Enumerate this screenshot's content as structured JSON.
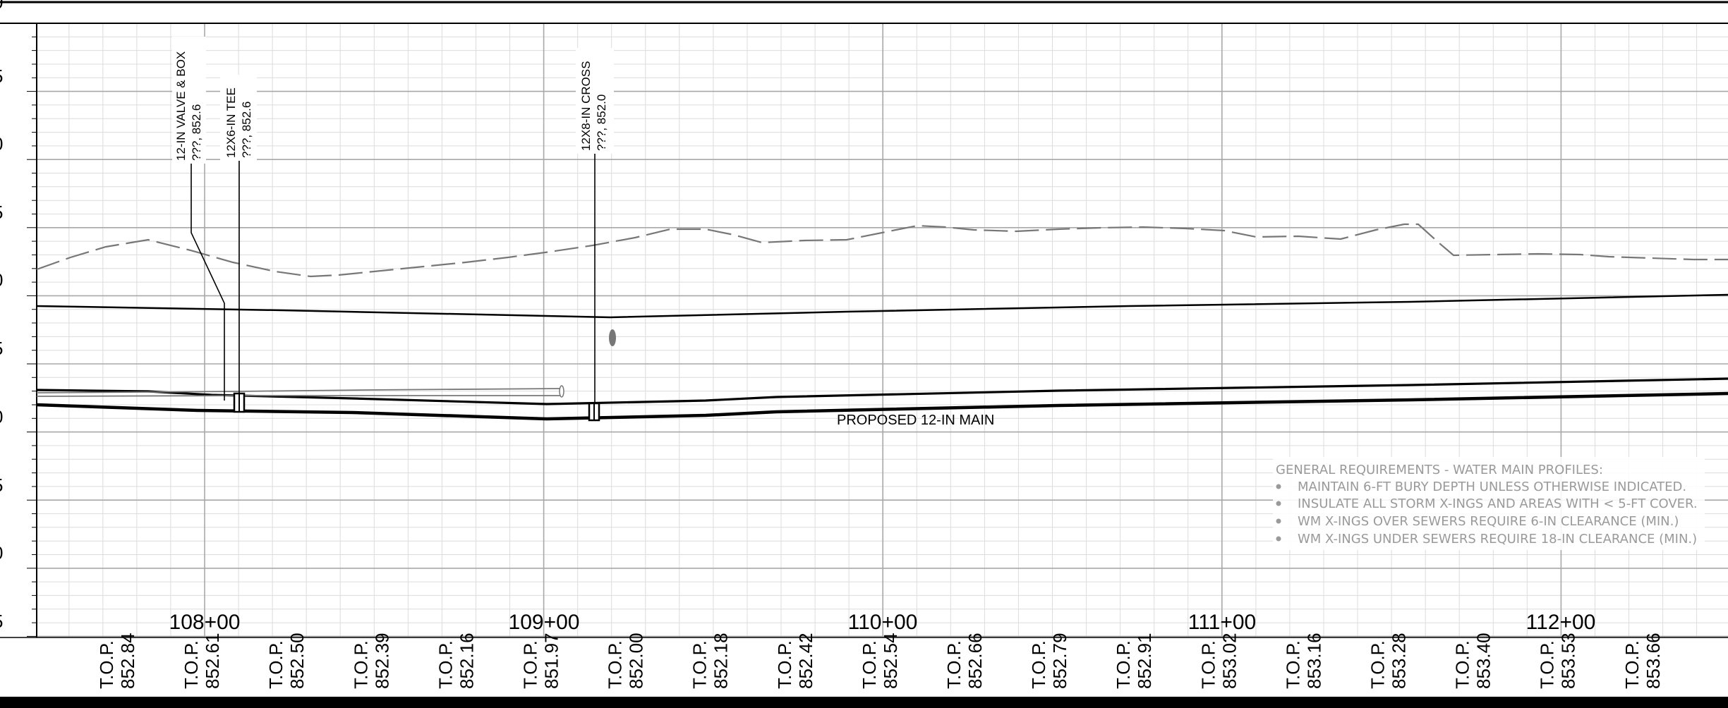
{
  "station_labels": [
    "108+00",
    "109+00",
    "110+00",
    "111+00",
    "112+00"
  ],
  "elevation_fragments": [
    "0",
    "5",
    "0",
    "5",
    "0",
    "5",
    "0",
    "5",
    "0",
    "5"
  ],
  "top_of_pipe": {
    "prefix": "T.O.P.",
    "values": [
      "852.84",
      "852.61",
      "852.50",
      "852.39",
      "852.16",
      "851.97",
      "852.00",
      "852.18",
      "852.42",
      "852.54",
      "852.66",
      "852.79",
      "852.91",
      "853.02",
      "853.16",
      "853.28",
      "853.40",
      "853.53",
      "853.66"
    ]
  },
  "callouts": [
    {
      "line1": "12-IN VALVE & BOX",
      "line2": "???, 852.6"
    },
    {
      "line1": "12X6-IN TEE",
      "line2": "???, 852.6"
    },
    {
      "line1": "12X8-IN CROSS",
      "line2": "???, 852.0"
    }
  ],
  "main_label": "PROPOSED 12-IN MAIN",
  "notes": {
    "title": "GENERAL REQUIREMENTS - WATER MAIN PROFILES:",
    "items": [
      "MAINTAIN 6-FT BURY DEPTH UNLESS OTHERWISE INDICATED.",
      "INSULATE ALL STORM X-INGS AND AREAS WITH < 5-FT COVER.",
      "WM X-INGS OVER SEWERS REQUIRE 6-IN CLEARANCE (MIN.)",
      "WM X-INGS UNDER SEWERS REQUIRE 18-IN CLEARANCE (MIN.)"
    ]
  },
  "colors": {
    "grid_minor": "#dcdcdc",
    "grid_major": "#a8a8a8",
    "ink": "#000000",
    "existing_grade": "#777777",
    "notes_text": "#9a9a9a"
  }
}
